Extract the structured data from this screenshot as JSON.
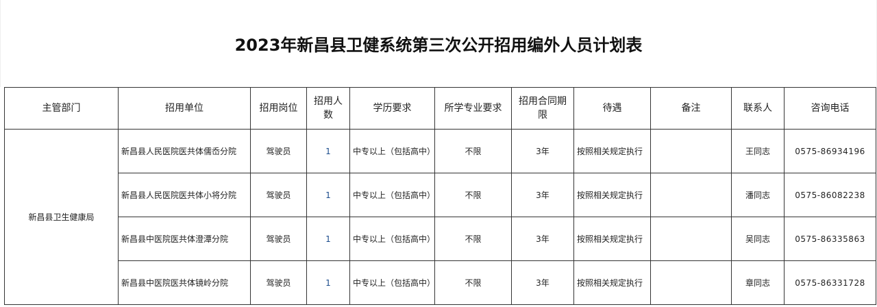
{
  "title": "2023年新昌县卫健系统第三次公开招用编外人员计划表",
  "headers": [
    "主管部门",
    "招用单位",
    "招用岗位",
    "招用人数",
    "学历要求",
    "所学专业要求",
    "招用合同期限",
    "待遇",
    "备注",
    "联系人",
    "咨询电话"
  ],
  "department": "新昌县卫生健康局",
  "rows": [
    {
      "unit": "新昌县人民医院医共体儒岙分院",
      "post": "驾驶员",
      "count": "1",
      "education": "中专以上（包括高中）",
      "major": "不限",
      "term": "3年",
      "pay": "按照相关规定执行",
      "note": "",
      "contact": "王同志",
      "phone": "0575-86934196"
    },
    {
      "unit": "新昌县人民医院医共体小将分院",
      "post": "驾驶员",
      "count": "1",
      "education": "中专以上（包括高中）",
      "major": "不限",
      "term": "3年",
      "pay": "按照相关规定执行",
      "note": "",
      "contact": "潘同志",
      "phone": "0575-86082238"
    },
    {
      "unit": "新昌县中医院医共体澄潭分院",
      "post": "驾驶员",
      "count": "1",
      "education": "中专以上（包括高中）",
      "major": "不限",
      "term": "3年",
      "pay": "按照相关规定执行",
      "note": "",
      "contact": "吴同志",
      "phone": "0575-86335863"
    },
    {
      "unit": "新昌县中医院医共体镜岭分院",
      "post": "驾驶员",
      "count": "1",
      "education": "中专以上（包括高中）",
      "major": "不限",
      "term": "3年",
      "pay": "按照相关规定执行",
      "note": "",
      "contact": "章同志",
      "phone": "0575-86331728"
    }
  ]
}
